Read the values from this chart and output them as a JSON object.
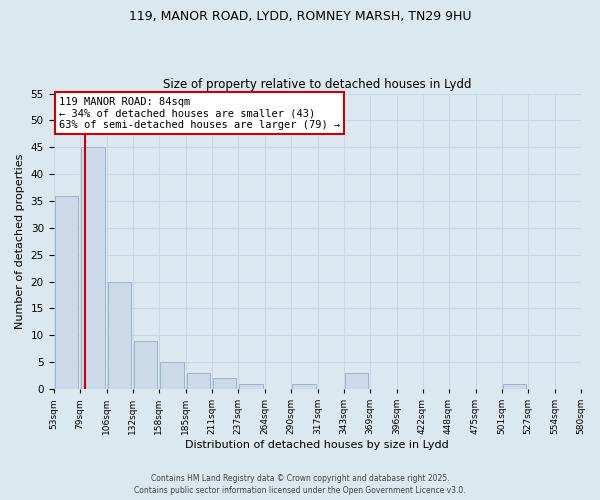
{
  "title1": "119, MANOR ROAD, LYDD, ROMNEY MARSH, TN29 9HU",
  "title2": "Size of property relative to detached houses in Lydd",
  "xlabel": "Distribution of detached houses by size in Lydd",
  "ylabel": "Number of detached properties",
  "bar_heights": [
    36,
    45,
    20,
    9,
    5,
    3,
    2,
    1,
    0,
    1,
    0,
    3,
    0,
    0,
    0,
    0,
    0,
    1,
    0,
    0
  ],
  "bin_edges": [
    53,
    79,
    106,
    132,
    158,
    185,
    211,
    237,
    264,
    290,
    317,
    343,
    369,
    396,
    422,
    448,
    475,
    501,
    527,
    554,
    580
  ],
  "bar_color": "#ccd9e8",
  "bar_edgecolor": "#9ab5cc",
  "red_line_x": 84,
  "annotation_title": "119 MANOR ROAD: 84sqm",
  "annotation_line1": "← 34% of detached houses are smaller (43)",
  "annotation_line2": "63% of semi-detached houses are larger (79) →",
  "annotation_box_facecolor": "#ffffff",
  "annotation_box_edgecolor": "#cc0000",
  "red_line_color": "#cc0000",
  "grid_color": "#c8d8e8",
  "background_color": "#dce8f0",
  "footer1": "Contains HM Land Registry data © Crown copyright and database right 2025.",
  "footer2": "Contains public sector information licensed under the Open Government Licence v3.0.",
  "ylim": [
    0,
    55
  ],
  "yticks": [
    0,
    5,
    10,
    15,
    20,
    25,
    30,
    35,
    40,
    45,
    50,
    55
  ]
}
